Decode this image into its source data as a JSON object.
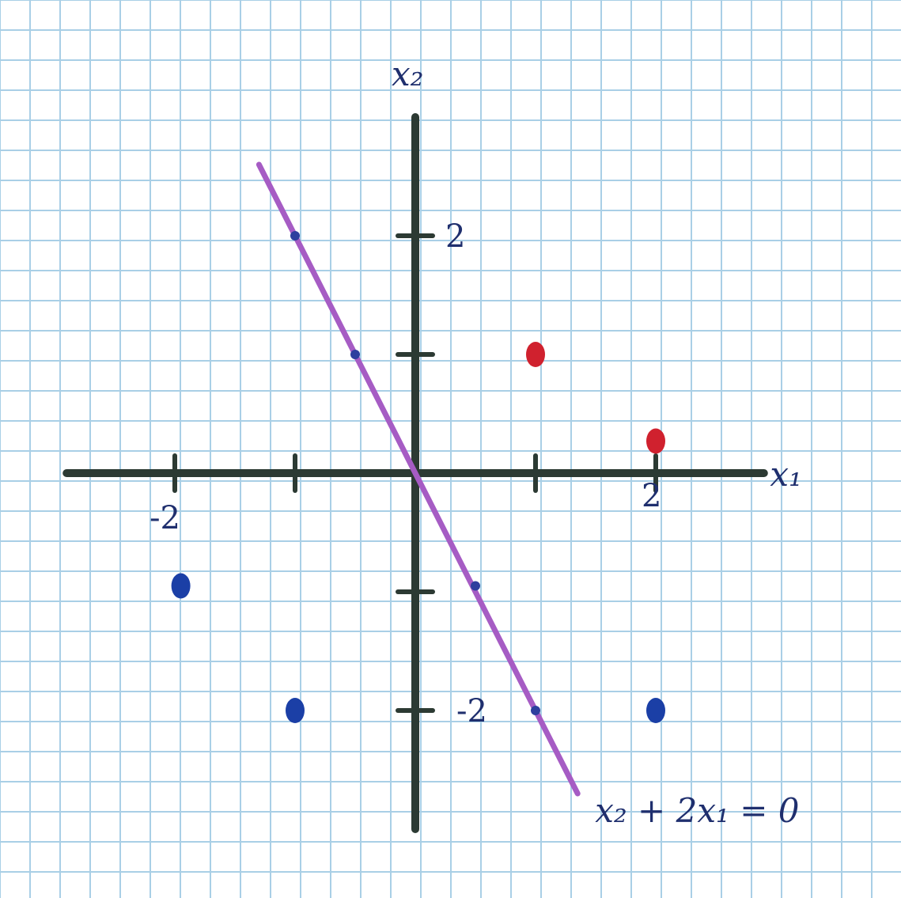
{
  "chart_data": {
    "type": "scatter",
    "xlabel": "x₁",
    "ylabel": "x₂",
    "xlim": [
      -2.9,
      2.9
    ],
    "ylim": [
      -3.0,
      3.8
    ],
    "grid": true,
    "x_ticks": [
      -2,
      -1,
      1,
      2
    ],
    "y_ticks": [
      -2,
      -1,
      1,
      2
    ],
    "x_tick_labels": [
      {
        "value": -2,
        "text": "-2"
      },
      {
        "value": 2,
        "text": "2"
      }
    ],
    "y_tick_labels": [
      {
        "value": 2,
        "text": "2"
      },
      {
        "value": -2,
        "text": "-2"
      }
    ],
    "series": [
      {
        "color": "#d0212e",
        "marker": "dot",
        "points": [
          [
            1,
            1
          ],
          [
            2,
            0.27
          ]
        ]
      },
      {
        "color": "#1b3fa6",
        "marker": "dot",
        "points": [
          [
            -1,
            -2
          ],
          [
            2,
            -2
          ],
          [
            -1.95,
            -0.95
          ]
        ]
      },
      {
        "color": "#2e3f9e",
        "marker": "small-dot",
        "points": [
          [
            -1,
            2
          ],
          [
            -0.5,
            1
          ],
          [
            0.5,
            -0.95
          ],
          [
            1,
            -2
          ]
        ]
      }
    ],
    "lines": [
      {
        "label": "x₂ + 2x₁ = 0",
        "slope": -2,
        "intercept": 0,
        "x_range": [
          -1.3,
          1.35
        ],
        "color": "#a65cc4"
      }
    ]
  }
}
